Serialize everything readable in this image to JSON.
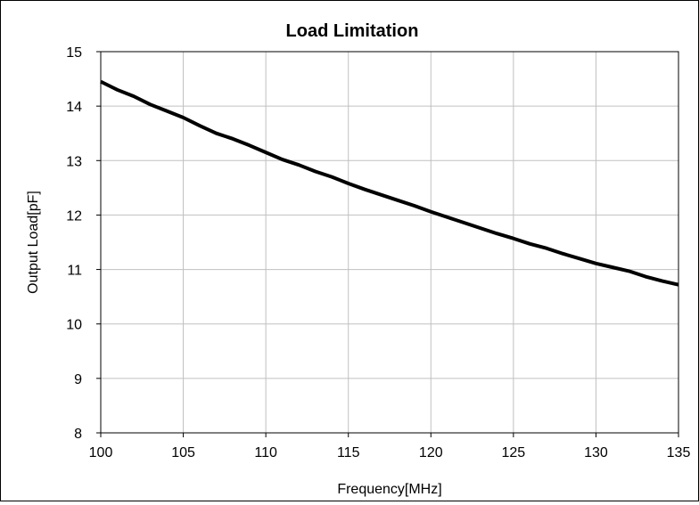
{
  "chart_data": {
    "type": "line",
    "title": "Load Limitation",
    "xlabel": "Frequency[MHz]",
    "ylabel": "Output Load[pF]",
    "xlim": [
      100,
      135
    ],
    "ylim": [
      8,
      15
    ],
    "x_ticks": [
      100,
      105,
      110,
      115,
      120,
      125,
      130,
      135
    ],
    "y_ticks": [
      8,
      9,
      10,
      11,
      12,
      13,
      14,
      15
    ],
    "grid": true,
    "series": [
      {
        "color": "#000000",
        "x": [
          100,
          101,
          102,
          103,
          104,
          105,
          106,
          107,
          108,
          109,
          110,
          111,
          112,
          113,
          114,
          115,
          116,
          117,
          118,
          119,
          120,
          121,
          122,
          123,
          124,
          125,
          126,
          127,
          128,
          129,
          130,
          131,
          132,
          133,
          134,
          135
        ],
        "y": [
          14.45,
          14.3,
          14.18,
          14.03,
          13.91,
          13.79,
          13.64,
          13.5,
          13.4,
          13.28,
          13.15,
          13.02,
          12.92,
          12.8,
          12.7,
          12.58,
          12.47,
          12.37,
          12.27,
          12.17,
          12.06,
          11.96,
          11.86,
          11.76,
          11.66,
          11.57,
          11.47,
          11.39,
          11.29,
          11.2,
          11.11,
          11.04,
          10.97,
          10.87,
          10.79,
          10.72
        ]
      }
    ]
  }
}
